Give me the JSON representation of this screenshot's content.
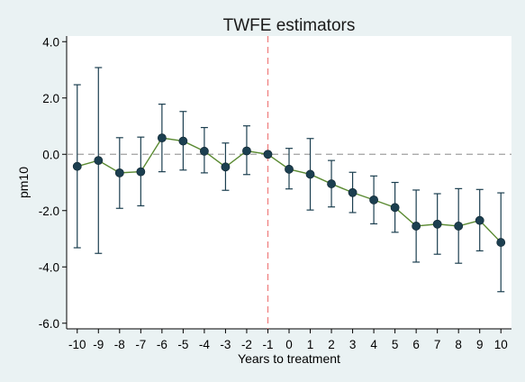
{
  "chart_data": {
    "type": "scatter",
    "title": "TWFE estimators",
    "xlabel": "Years to treatment",
    "ylabel": "pm10",
    "xlim": [
      -10.5,
      10.5
    ],
    "ylim": [
      -6.2,
      4.2
    ],
    "x_ticks": [
      -10,
      -9,
      -8,
      -7,
      -6,
      -5,
      -4,
      -3,
      -2,
      -1,
      0,
      1,
      2,
      3,
      4,
      5,
      6,
      7,
      8,
      9,
      10
    ],
    "y_ticks": [
      4.0,
      2.0,
      0.0,
      -2.0,
      -4.0,
      -6.0
    ],
    "y_tick_labels": [
      "4.0",
      "2.0",
      "0.0",
      "-2.0",
      "-4.0",
      "-6.0"
    ],
    "grid": false,
    "reference_lines": [
      {
        "axis": "y",
        "value": 0,
        "style": "dashed",
        "color": "#a0a0a0"
      },
      {
        "axis": "x",
        "value": -1,
        "style": "dashed",
        "color": "#f08080"
      }
    ],
    "series": [
      {
        "x": [
          -10,
          -9,
          -8,
          -7,
          -6,
          -5,
          -4,
          -3,
          -2,
          -1,
          0,
          1,
          2,
          3,
          4,
          5,
          6,
          7,
          8,
          9,
          10
        ],
        "y": [
          -0.43,
          -0.22,
          -0.66,
          -0.62,
          0.58,
          0.47,
          0.11,
          -0.45,
          0.12,
          0.0,
          -0.53,
          -0.71,
          -1.05,
          -1.36,
          -1.62,
          -1.89,
          -2.55,
          -2.48,
          -2.55,
          -2.35,
          -3.13
        ],
        "ci_low": [
          -3.32,
          -3.52,
          -1.92,
          -1.83,
          -0.62,
          -0.56,
          -0.66,
          -1.28,
          -0.72,
          0.0,
          -1.23,
          -1.98,
          -1.87,
          -2.07,
          -2.47,
          -2.77,
          -3.83,
          -3.55,
          -3.87,
          -3.43,
          -4.88
        ],
        "ci_high": [
          2.47,
          3.08,
          0.59,
          0.61,
          1.78,
          1.52,
          0.95,
          0.4,
          1.01,
          0.0,
          0.21,
          0.56,
          -0.22,
          -0.64,
          -0.77,
          -1.0,
          -1.27,
          -1.4,
          -1.22,
          -1.25,
          -1.37
        ],
        "line_color": "#5a8a32",
        "marker_color": "#1c3f50",
        "errorbar_color": "#1c3f50"
      }
    ],
    "colors": {
      "background": "#eaf2f3",
      "plot_background": "#ffffff",
      "axis": "#000000"
    }
  }
}
